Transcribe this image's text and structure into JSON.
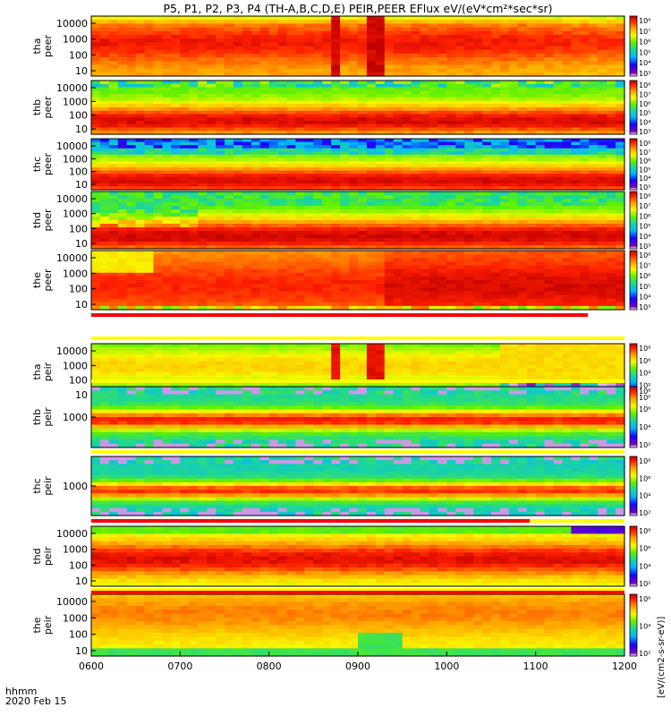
{
  "chart_data": {
    "type": "heatmap",
    "title": "P5, P1, P2, P3, P4 (TH-A,B,C,D,E) PEIR,PEER EFlux eV/(eV*cm²*sec*sr)",
    "date_label": "2020 Feb 15",
    "time_label": "hhmm",
    "x_tick_labels": [
      "0600",
      "0700",
      "0800",
      "0900",
      "1000",
      "1100",
      "1200"
    ],
    "x_range": [
      "0600",
      "1200"
    ],
    "colorbar_unit_label": "[eV/(cm2-s-sr-eV)]",
    "panels": [
      {
        "name": "tha peer",
        "line1": "tha",
        "line2": "peer",
        "y_ticks": [
          "10000",
          "1000",
          "100",
          "10"
        ],
        "cbar_ticks": [
          "10⁸",
          "10⁷",
          "10⁶",
          "10⁵",
          "10⁴",
          "10³"
        ],
        "profile": "tha_peer"
      },
      {
        "name": "thb peer",
        "line1": "thb",
        "line2": "peer",
        "y_ticks": [
          "10000",
          "1000",
          "100",
          "10"
        ],
        "cbar_ticks": [
          "10⁸",
          "10⁷",
          "10⁶",
          "10⁵",
          "10⁴",
          "10³"
        ],
        "profile": "thb_peer"
      },
      {
        "name": "thc peer",
        "line1": "thc",
        "line2": "peer",
        "y_ticks": [
          "10000",
          "1000",
          "100",
          "10"
        ],
        "cbar_ticks": [
          "10⁸",
          "10⁷",
          "10⁶",
          "10⁵",
          "10⁴",
          "10³"
        ],
        "profile": "thc_peer"
      },
      {
        "name": "thd peer",
        "line1": "thd",
        "line2": "peer",
        "y_ticks": [
          "10000",
          "1000",
          "100",
          "10"
        ],
        "cbar_ticks": [
          "10⁸",
          "10⁷",
          "10⁶",
          "10⁵",
          "10⁴",
          "10³"
        ],
        "profile": "thd_peer"
      },
      {
        "name": "the peer",
        "line1": "the",
        "line2": "peer",
        "y_ticks": [
          "10000",
          "1000",
          "100",
          "10"
        ],
        "cbar_ticks": [
          "10⁸",
          "10⁷",
          "10⁶",
          "10⁵",
          "10⁴",
          "10³"
        ],
        "profile": "the_peer"
      },
      {
        "name": "tha peir",
        "line1": "tha",
        "line2": "peir",
        "y_ticks": [
          "10000",
          "1000",
          "100",
          "10"
        ],
        "cbar_ticks": [
          "10⁸",
          "10⁶",
          "10⁴",
          "10²",
          "10⁰"
        ],
        "profile": "tha_peir"
      },
      {
        "name": "thb peir",
        "line1": "thb",
        "line2": "peir",
        "y_ticks": [
          "1000"
        ],
        "cbar_ticks": [
          "10⁸",
          "10⁶",
          "10⁴",
          "10²"
        ],
        "profile": "thb_peir"
      },
      {
        "name": "thc peir",
        "line1": "thc",
        "line2": "peir",
        "y_ticks": [
          "1000"
        ],
        "cbar_ticks": [
          "10⁸",
          "10⁶",
          "10⁴",
          "10²"
        ],
        "profile": "thc_peir"
      },
      {
        "name": "thd peir",
        "line1": "thd",
        "line2": "peir",
        "y_ticks": [
          "10000",
          "1000",
          "100",
          "10"
        ],
        "cbar_ticks": [
          "10⁸",
          "10⁶",
          "10⁴",
          "10²"
        ],
        "profile": "thd_peir"
      },
      {
        "name": "the peir",
        "line1": "the",
        "line2": "peir",
        "y_ticks": [
          "10000",
          "1000",
          "100",
          "10"
        ],
        "cbar_ticks": [
          "10⁶",
          "10⁴",
          "10²"
        ],
        "profile": "the_peir"
      }
    ]
  }
}
